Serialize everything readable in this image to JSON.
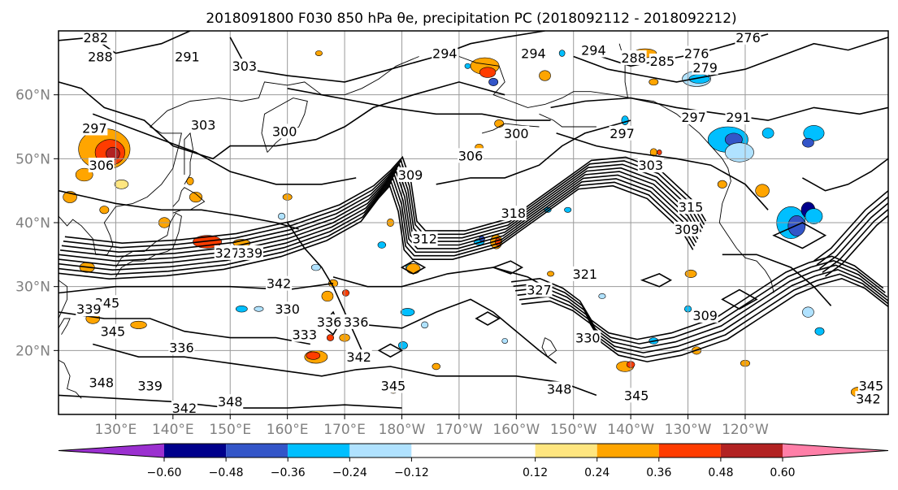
{
  "chart_data": {
    "type": "heatmap",
    "title": "2018091800 F030 850 hPa θe, precipitation PC (2018092112 - 2018092212)",
    "map": {
      "lon_range": [
        120,
        265
      ],
      "lat_range": [
        10,
        70
      ],
      "x_ticks": [
        {
          "lon": 130,
          "label": "130°E"
        },
        {
          "lon": 140,
          "label": "140°E"
        },
        {
          "lon": 150,
          "label": "150°E"
        },
        {
          "lon": 160,
          "label": "160°E"
        },
        {
          "lon": 170,
          "label": "170°E"
        },
        {
          "lon": 180,
          "label": "180°W"
        },
        {
          "lon": 190,
          "label": "170°W"
        },
        {
          "lon": 200,
          "label": "160°W"
        },
        {
          "lon": 210,
          "label": "150°W"
        },
        {
          "lon": 220,
          "label": "140°W"
        },
        {
          "lon": 230,
          "label": "130°W"
        },
        {
          "lon": 240,
          "label": "120°W"
        }
      ],
      "y_ticks": [
        {
          "lat": 20,
          "label": "20°N"
        },
        {
          "lat": 30,
          "label": "30°N"
        },
        {
          "lat": 40,
          "label": "40°N"
        },
        {
          "lat": 50,
          "label": "50°N"
        },
        {
          "lat": 60,
          "label": "60°N"
        }
      ],
      "grid": true
    },
    "colorbar": {
      "levels": [
        -0.72,
        -0.6,
        -0.48,
        -0.36,
        -0.24,
        -0.12,
        0.12,
        0.24,
        0.36,
        0.48,
        0.6,
        0.72
      ],
      "colors": [
        "#9b30d0",
        "#00008b",
        "#3355c8",
        "#00bfff",
        "#b0e2ff",
        "#ffffff",
        "#ffe680",
        "#ffa500",
        "#ff3c00",
        "#b22222",
        "#ff7fa8"
      ],
      "tick_values": [
        -0.6,
        -0.48,
        -0.36,
        -0.24,
        -0.12,
        0.12,
        0.24,
        0.36,
        0.48,
        0.6
      ],
      "tick_labels": [
        "−0.60",
        "−0.48",
        "−0.36",
        "−0.24",
        "−0.12",
        "0.12",
        "0.24",
        "0.36",
        "0.48",
        "0.60"
      ],
      "extend": "both"
    },
    "contour_labels": [
      {
        "text": "282",
        "lon": 126.5,
        "lat": 68.5
      },
      {
        "text": "288",
        "lon": 127.3,
        "lat": 65.5
      },
      {
        "text": "297",
        "lon": 126.3,
        "lat": 54.3
      },
      {
        "text": "306",
        "lon": 127.5,
        "lat": 48.5
      },
      {
        "text": "291",
        "lon": 142.5,
        "lat": 65.5
      },
      {
        "text": "303",
        "lon": 152.5,
        "lat": 64.0
      },
      {
        "text": "303",
        "lon": 145.3,
        "lat": 54.8
      },
      {
        "text": "300",
        "lon": 159.5,
        "lat": 53.8
      },
      {
        "text": "294",
        "lon": 187.5,
        "lat": 66.0
      },
      {
        "text": "294",
        "lon": 203.0,
        "lat": 66.0
      },
      {
        "text": "300",
        "lon": 200.0,
        "lat": 53.5
      },
      {
        "text": "294",
        "lon": 213.5,
        "lat": 66.5
      },
      {
        "text": "288",
        "lon": 220.5,
        "lat": 65.3
      },
      {
        "text": "285",
        "lon": 225.5,
        "lat": 64.8
      },
      {
        "text": "279",
        "lon": 233.0,
        "lat": 63.8
      },
      {
        "text": "276",
        "lon": 231.5,
        "lat": 66.0
      },
      {
        "text": "276",
        "lon": 240.5,
        "lat": 68.5
      },
      {
        "text": "297",
        "lon": 231.0,
        "lat": 56.0
      },
      {
        "text": "291",
        "lon": 238.8,
        "lat": 56.0
      },
      {
        "text": "297",
        "lon": 218.5,
        "lat": 53.5
      },
      {
        "text": "303",
        "lon": 223.5,
        "lat": 48.5
      },
      {
        "text": "306",
        "lon": 192.0,
        "lat": 50.0
      },
      {
        "text": "309",
        "lon": 181.5,
        "lat": 47.0
      },
      {
        "text": "315",
        "lon": 230.5,
        "lat": 42.0
      },
      {
        "text": "309",
        "lon": 229.8,
        "lat": 38.5
      },
      {
        "text": "312",
        "lon": 184.0,
        "lat": 37.0
      },
      {
        "text": "318",
        "lon": 199.5,
        "lat": 41.0
      },
      {
        "text": "327",
        "lon": 149.5,
        "lat": 34.8
      },
      {
        "text": "339",
        "lon": 153.5,
        "lat": 34.8
      },
      {
        "text": "342",
        "lon": 158.5,
        "lat": 30.0
      },
      {
        "text": "330",
        "lon": 160.0,
        "lat": 26.0
      },
      {
        "text": "336",
        "lon": 167.3,
        "lat": 24.0
      },
      {
        "text": "336",
        "lon": 172.0,
        "lat": 24.0
      },
      {
        "text": "342",
        "lon": 172.5,
        "lat": 18.5
      },
      {
        "text": "333",
        "lon": 163.0,
        "lat": 22.0
      },
      {
        "text": "345",
        "lon": 128.5,
        "lat": 27.0
      },
      {
        "text": "339",
        "lon": 125.3,
        "lat": 26.0
      },
      {
        "text": "345",
        "lon": 129.5,
        "lat": 22.5
      },
      {
        "text": "345",
        "lon": 178.5,
        "lat": 14.0
      },
      {
        "text": "348",
        "lon": 127.5,
        "lat": 14.5
      },
      {
        "text": "339",
        "lon": 136.0,
        "lat": 14.0
      },
      {
        "text": "342",
        "lon": 142.0,
        "lat": 10.5
      },
      {
        "text": "348",
        "lon": 150.0,
        "lat": 11.5
      },
      {
        "text": "336",
        "lon": 141.5,
        "lat": 20.0
      },
      {
        "text": "327",
        "lon": 204.0,
        "lat": 29.0
      },
      {
        "text": "321",
        "lon": 212.0,
        "lat": 31.5
      },
      {
        "text": "330",
        "lon": 212.5,
        "lat": 21.5
      },
      {
        "text": "348",
        "lon": 207.5,
        "lat": 13.5
      },
      {
        "text": "345",
        "lon": 221.0,
        "lat": 12.5
      },
      {
        "text": "309",
        "lon": 233.0,
        "lat": 25.0
      },
      {
        "text": "345",
        "lon": 262.0,
        "lat": 14.0
      },
      {
        "text": "342",
        "lon": 261.5,
        "lat": 12.0
      }
    ]
  }
}
